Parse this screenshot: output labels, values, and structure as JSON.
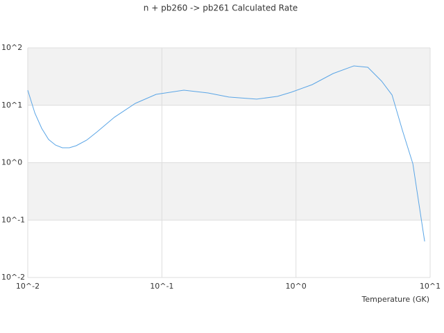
{
  "chart_data": {
    "type": "line",
    "title": "n + pb260 -> pb261 Calculated Rate",
    "x_label": "Temperature (GK)",
    "x": [
      0.01,
      0.0113,
      0.0127,
      0.0143,
      0.0161,
      0.0181,
      0.0204,
      0.023,
      0.0275,
      0.0329,
      0.0443,
      0.0634,
      0.0906,
      0.146,
      0.221,
      0.316,
      0.509,
      0.728,
      0.924,
      1.32,
      1.89,
      2.7,
      3.43,
      4.35,
      5.2,
      6.22,
      7.43,
      9.1
    ],
    "series": [
      {
        "color": "#5aa5e6",
        "values": [
          18.3,
          7.3,
          3.96,
          2.54,
          2.03,
          1.82,
          1.82,
          1.98,
          2.47,
          3.45,
          6.2,
          10.8,
          15.5,
          18.3,
          16.4,
          13.9,
          12.8,
          14.3,
          16.9,
          22.9,
          35.7,
          48.5,
          45.9,
          26.3,
          15.1,
          3.65,
          0.96,
          0.0425
        ]
      }
    ],
    "xlim": [
      0.01,
      10
    ],
    "ylim": [
      0.01,
      100
    ],
    "xticks": [
      {
        "value": 0.01,
        "label": "10^-2"
      },
      {
        "value": 0.1,
        "label": "10^-1"
      },
      {
        "value": 1,
        "label": "10^0"
      },
      {
        "value": 10,
        "label": "10^1"
      }
    ],
    "yticks": [
      {
        "value": 0.01,
        "label": "10^-2"
      },
      {
        "value": 0.1,
        "label": "10^-1"
      },
      {
        "value": 1,
        "label": "10^0"
      },
      {
        "value": 10,
        "label": "10^1"
      },
      {
        "value": 100,
        "label": "10^2"
      }
    ],
    "xscale": "log",
    "yscale": "log",
    "grid": true
  }
}
